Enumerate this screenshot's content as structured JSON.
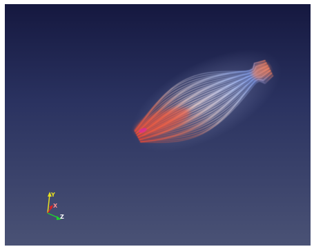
{
  "viewport": {
    "background_top": "#15183f",
    "background_bottom": "#4a5275"
  },
  "orientation_axes": {
    "x_label": "X",
    "y_label": "Y",
    "z_label": "Z",
    "x_color": "#e02020",
    "y_color": "#e8e020",
    "z_color": "#20d030"
  },
  "streamlines": {
    "colormap": [
      "#f2553a",
      "#f59a80",
      "#f3f0f2",
      "#9fb5ee",
      "#5b7fe0"
    ]
  }
}
